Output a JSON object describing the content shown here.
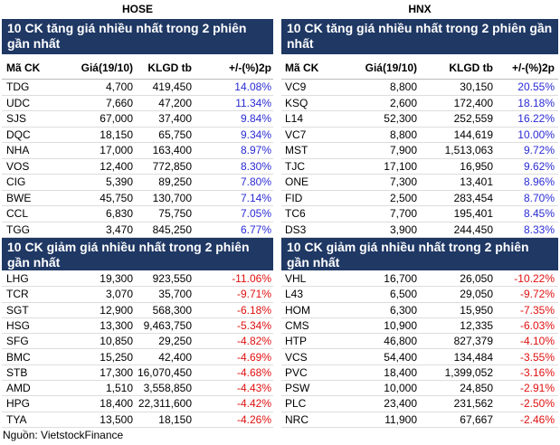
{
  "source": "Nguồn: VietstockFinance",
  "markets": [
    {
      "title": "HOSE",
      "gainers": {
        "title": "10 CK tăng giá nhiều nhất trong 2 phiên gần nhất",
        "columns": [
          "Mã CK",
          "Giá(19/10)",
          "KLGD tb",
          "+/-(%)2p"
        ],
        "rows": [
          [
            "TDG",
            "4,700",
            "419,450",
            "14.08%"
          ],
          [
            "UDC",
            "7,660",
            "47,200",
            "11.34%"
          ],
          [
            "SJS",
            "67,000",
            "37,400",
            "9.84%"
          ],
          [
            "DQC",
            "18,150",
            "65,750",
            "9.34%"
          ],
          [
            "NHA",
            "17,000",
            "163,400",
            "8.97%"
          ],
          [
            "VOS",
            "12,400",
            "772,850",
            "8.30%"
          ],
          [
            "CIG",
            "5,390",
            "89,250",
            "7.80%"
          ],
          [
            "BWE",
            "45,750",
            "130,700",
            "7.14%"
          ],
          [
            "CCL",
            "6,830",
            "75,750",
            "7.05%"
          ],
          [
            "TGG",
            "3,470",
            "845,250",
            "6.77%"
          ]
        ]
      },
      "losers": {
        "title": "10 CK giảm giá nhiều nhất trong 2 phiên gần nhất",
        "rows": [
          [
            "LHG",
            "19,300",
            "923,550",
            "-11.06%"
          ],
          [
            "TCR",
            "3,070",
            "35,700",
            "-9.71%"
          ],
          [
            "SGT",
            "12,900",
            "568,300",
            "-6.18%"
          ],
          [
            "HSG",
            "13,300",
            "9,463,750",
            "-5.34%"
          ],
          [
            "SFG",
            "10,850",
            "29,250",
            "-4.82%"
          ],
          [
            "BMC",
            "15,250",
            "42,400",
            "-4.69%"
          ],
          [
            "STB",
            "17,300",
            "16,070,450",
            "-4.68%"
          ],
          [
            "AMD",
            "1,510",
            "3,558,850",
            "-4.43%"
          ],
          [
            "HPG",
            "18,400",
            "22,311,600",
            "-4.42%"
          ],
          [
            "TYA",
            "13,500",
            "18,150",
            "-4.26%"
          ]
        ]
      }
    },
    {
      "title": "HNX",
      "gainers": {
        "title": "10 CK tăng giá nhiều nhất trong 2 phiên gần nhất",
        "columns": [
          "Mã CK",
          "Giá(19/10)",
          "KLGD tb",
          "+/-(%)2p"
        ],
        "rows": [
          [
            "VC9",
            "8,800",
            "30,150",
            "20.55%"
          ],
          [
            "KSQ",
            "2,600",
            "172,400",
            "18.18%"
          ],
          [
            "L14",
            "52,300",
            "252,559",
            "16.22%"
          ],
          [
            "VC7",
            "8,800",
            "144,619",
            "10.00%"
          ],
          [
            "MST",
            "7,900",
            "1,513,063",
            "9.72%"
          ],
          [
            "TJC",
            "17,100",
            "16,950",
            "9.62%"
          ],
          [
            "ONE",
            "7,300",
            "13,401",
            "8.96%"
          ],
          [
            "FID",
            "2,500",
            "283,454",
            "8.70%"
          ],
          [
            "TC6",
            "7,700",
            "195,401",
            "8.45%"
          ],
          [
            "DS3",
            "3,900",
            "244,450",
            "8.33%"
          ]
        ]
      },
      "losers": {
        "title": "10 CK giảm giá nhiều nhất trong 2 phiên gần nhất",
        "rows": [
          [
            "VHL",
            "16,700",
            "26,050",
            "-10.22%"
          ],
          [
            "L43",
            "6,500",
            "29,050",
            "-9.72%"
          ],
          [
            "HOM",
            "6,300",
            "15,950",
            "-7.35%"
          ],
          [
            "CMS",
            "10,900",
            "12,335",
            "-6.03%"
          ],
          [
            "HTP",
            "46,800",
            "827,379",
            "-4.10%"
          ],
          [
            "VCS",
            "54,400",
            "134,484",
            "-3.55%"
          ],
          [
            "PVC",
            "18,400",
            "1,399,052",
            "-3.16%"
          ],
          [
            "PSW",
            "10,000",
            "24,850",
            "-2.91%"
          ],
          [
            "PLC",
            "23,400",
            "231,562",
            "-2.50%"
          ],
          [
            "NRC",
            "11,900",
            "67,667",
            "-2.46%"
          ]
        ]
      }
    }
  ]
}
